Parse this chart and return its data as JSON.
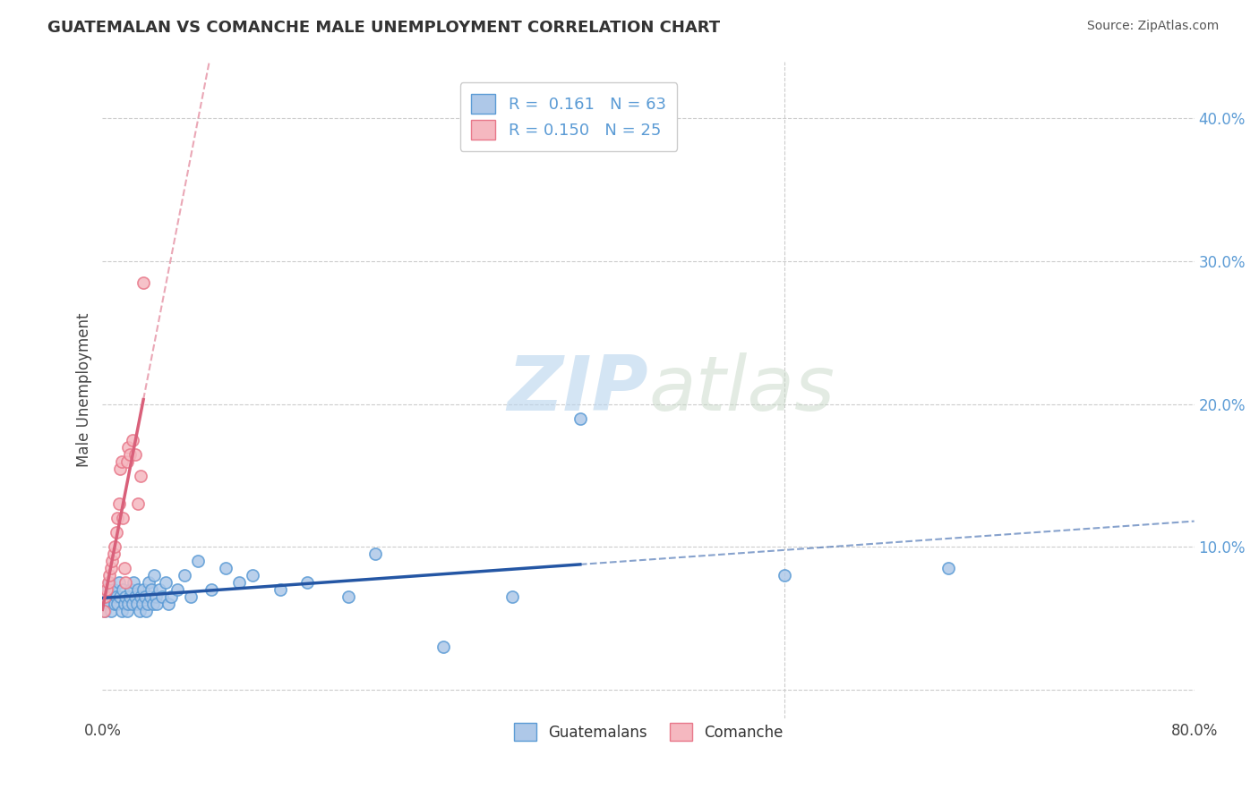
{
  "title": "GUATEMALAN VS COMANCHE MALE UNEMPLOYMENT CORRELATION CHART",
  "source": "Source: ZipAtlas.com",
  "ylabel": "Male Unemployment",
  "xlabel": "",
  "xlim": [
    0.0,
    0.8
  ],
  "ylim": [
    -0.02,
    0.44
  ],
  "yticks": [
    0.0,
    0.1,
    0.2,
    0.3,
    0.4
  ],
  "xticks": [
    0.0,
    0.8
  ],
  "xtick_labels": [
    "0.0%",
    "80.0%"
  ],
  "ytick_labels": [
    "",
    "10.0%",
    "20.0%",
    "30.0%",
    "40.0%"
  ],
  "background_color": "#ffffff",
  "grid_color": "#cccccc",
  "watermark_zip": "ZIP",
  "watermark_atlas": "atlas",
  "blue_color": "#5b9bd5",
  "blue_fill": "#aec8e8",
  "pink_color": "#e8788a",
  "pink_fill": "#f5b8c0",
  "trend_blue_color": "#2456a4",
  "trend_pink_color": "#d9607a",
  "legend_label1": "R =  0.161   N = 63",
  "legend_label2": "R = 0.150   N = 25",
  "bottom_label1": "Guatemalans",
  "bottom_label2": "Comanche",
  "guatemalan_x": [
    0.001,
    0.002,
    0.003,
    0.004,
    0.005,
    0.005,
    0.006,
    0.007,
    0.008,
    0.009,
    0.01,
    0.011,
    0.012,
    0.013,
    0.014,
    0.015,
    0.016,
    0.017,
    0.018,
    0.019,
    0.02,
    0.021,
    0.022,
    0.023,
    0.024,
    0.025,
    0.026,
    0.027,
    0.028,
    0.029,
    0.03,
    0.031,
    0.032,
    0.033,
    0.034,
    0.035,
    0.036,
    0.037,
    0.038,
    0.039,
    0.04,
    0.042,
    0.044,
    0.046,
    0.048,
    0.05,
    0.055,
    0.06,
    0.065,
    0.07,
    0.08,
    0.09,
    0.1,
    0.11,
    0.13,
    0.15,
    0.18,
    0.2,
    0.25,
    0.3,
    0.35,
    0.5,
    0.62
  ],
  "guatemalan_y": [
    0.06,
    0.055,
    0.065,
    0.07,
    0.06,
    0.075,
    0.055,
    0.065,
    0.07,
    0.06,
    0.065,
    0.06,
    0.075,
    0.065,
    0.055,
    0.07,
    0.06,
    0.065,
    0.055,
    0.06,
    0.065,
    0.07,
    0.06,
    0.075,
    0.065,
    0.06,
    0.07,
    0.055,
    0.065,
    0.06,
    0.07,
    0.065,
    0.055,
    0.06,
    0.075,
    0.065,
    0.07,
    0.06,
    0.08,
    0.065,
    0.06,
    0.07,
    0.065,
    0.075,
    0.06,
    0.065,
    0.07,
    0.08,
    0.065,
    0.09,
    0.07,
    0.085,
    0.075,
    0.08,
    0.07,
    0.075,
    0.065,
    0.095,
    0.03,
    0.065,
    0.19,
    0.08,
    0.085
  ],
  "comanche_x": [
    0.001,
    0.002,
    0.003,
    0.004,
    0.005,
    0.006,
    0.007,
    0.008,
    0.009,
    0.01,
    0.011,
    0.012,
    0.013,
    0.014,
    0.015,
    0.016,
    0.017,
    0.018,
    0.019,
    0.02,
    0.022,
    0.024,
    0.026,
    0.028,
    0.03
  ],
  "comanche_y": [
    0.055,
    0.065,
    0.07,
    0.075,
    0.08,
    0.085,
    0.09,
    0.095,
    0.1,
    0.11,
    0.12,
    0.13,
    0.155,
    0.16,
    0.12,
    0.085,
    0.075,
    0.16,
    0.17,
    0.165,
    0.175,
    0.165,
    0.13,
    0.15,
    0.285
  ]
}
